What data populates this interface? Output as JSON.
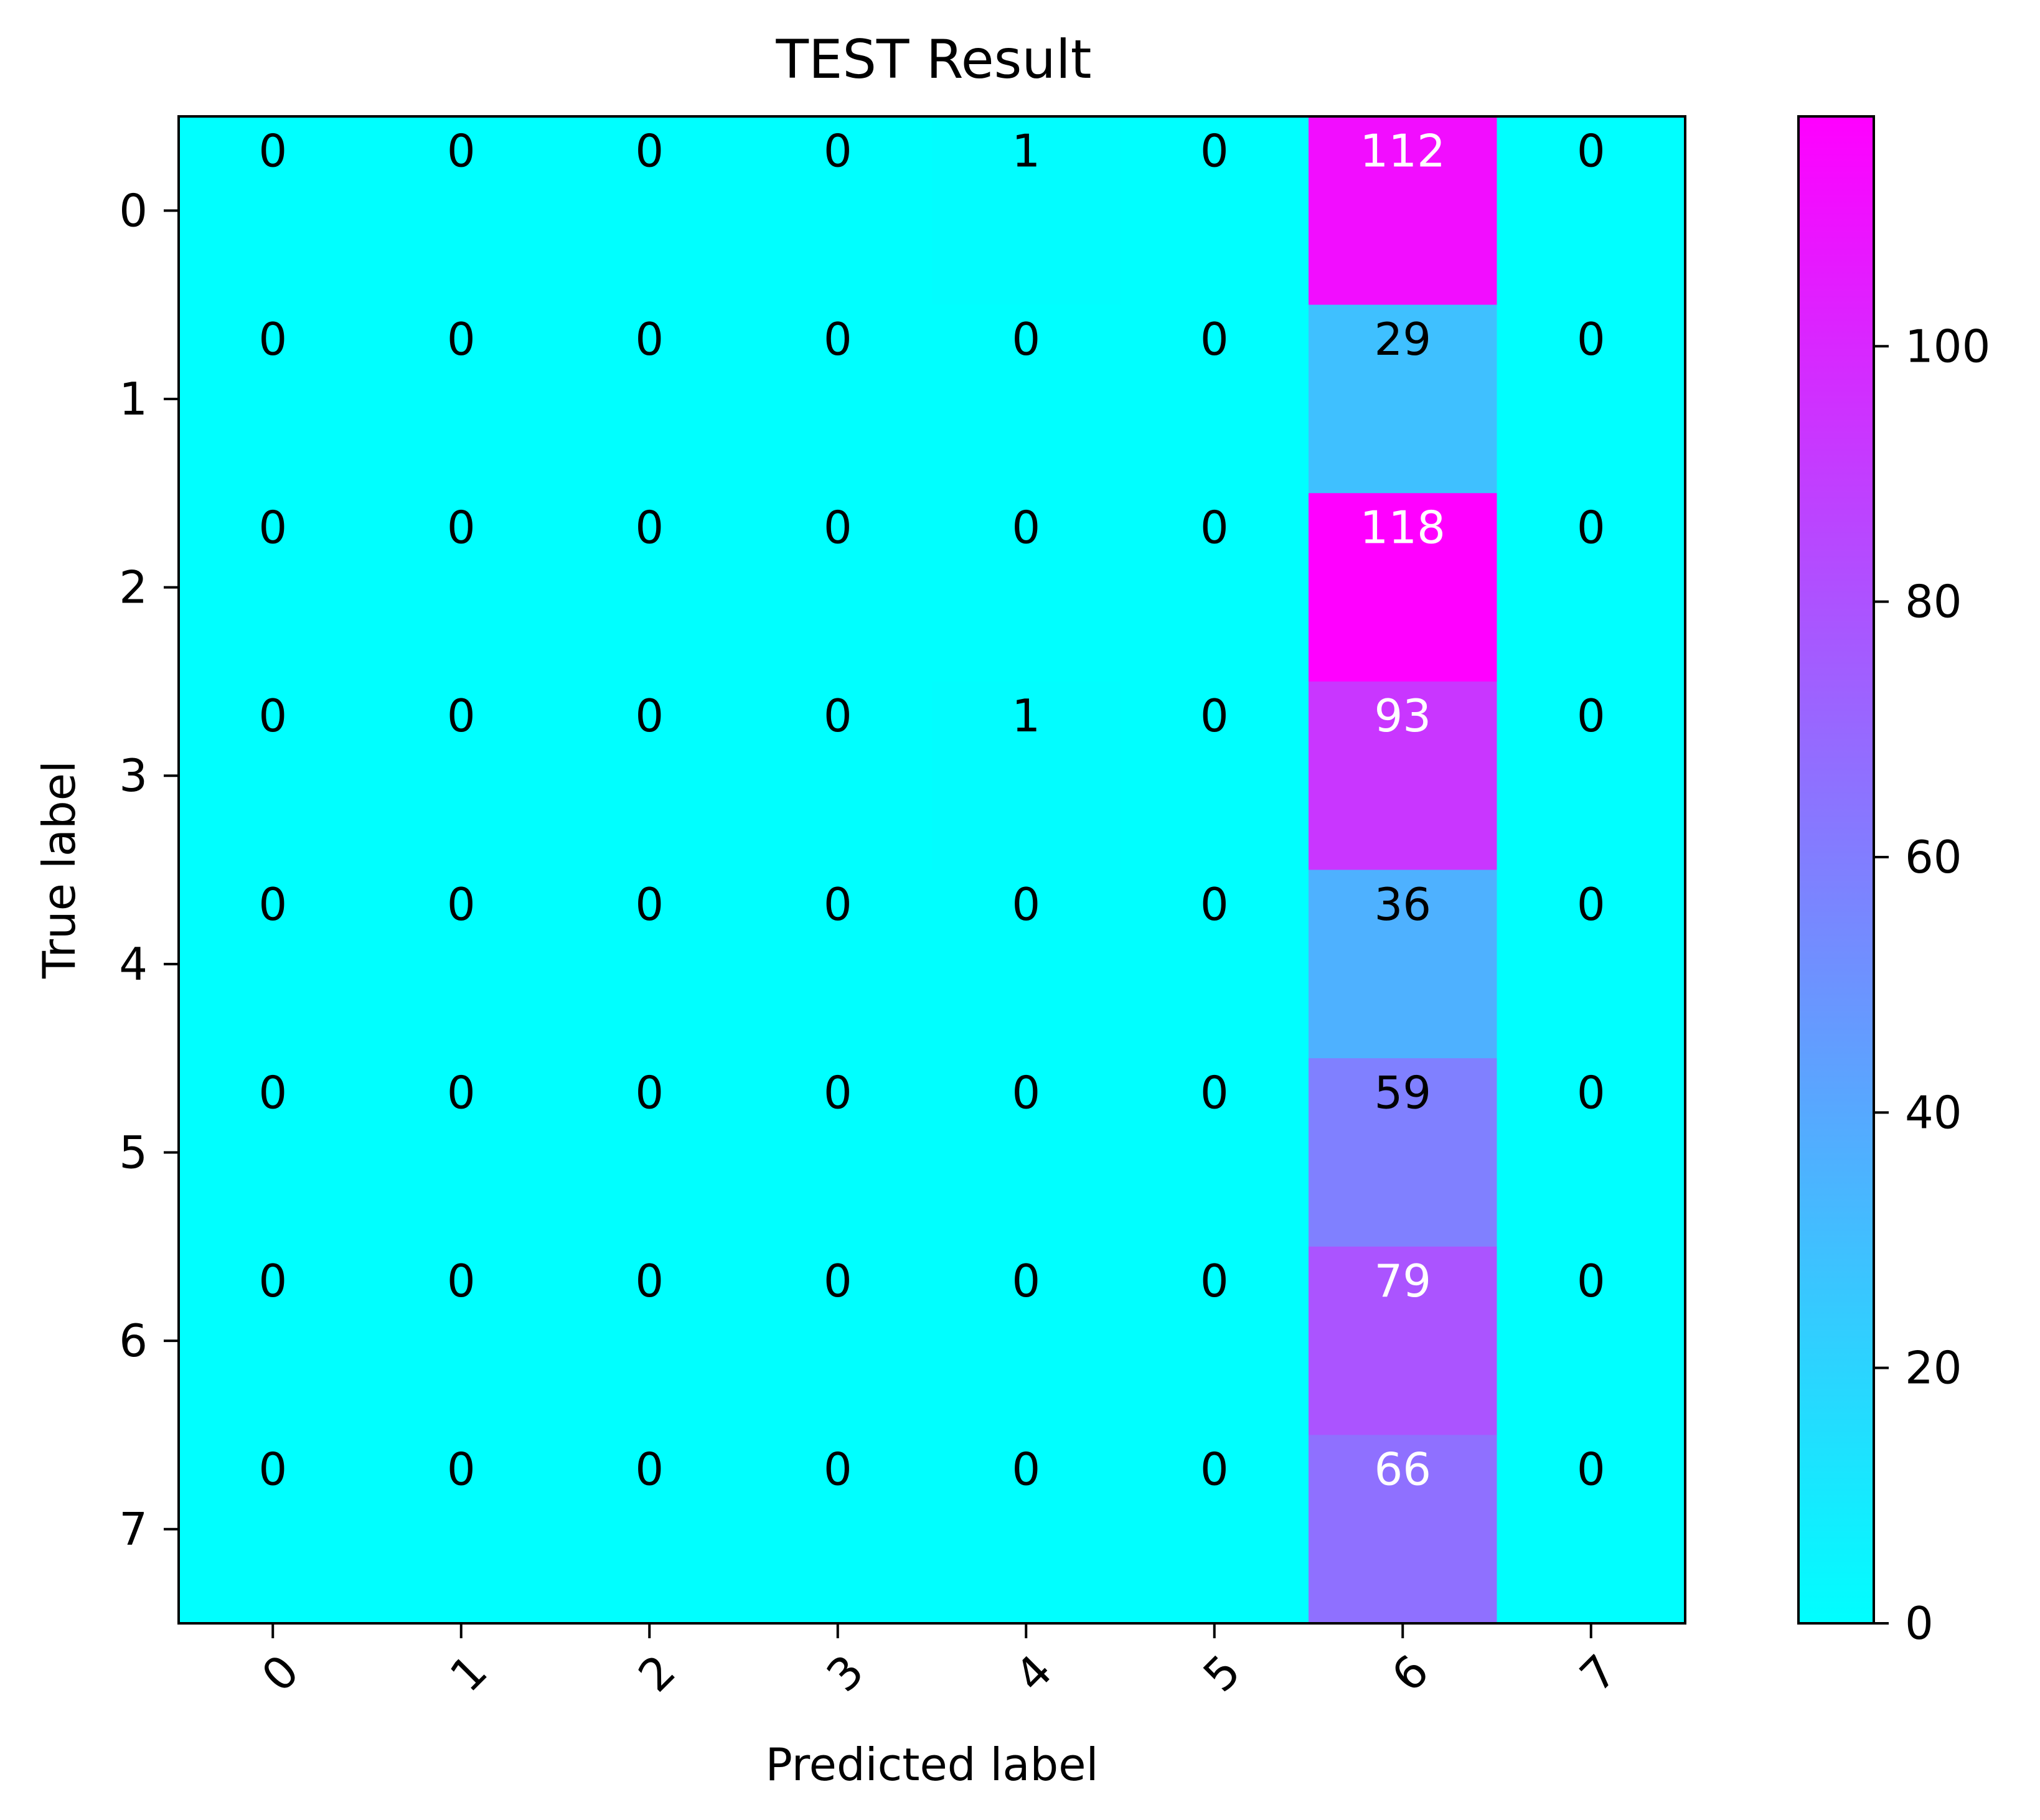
{
  "chart_data": {
    "type": "heatmap",
    "title": "TEST Result",
    "xlabel": "Predicted label",
    "ylabel": "True label",
    "x_tick_labels": [
      "0",
      "1",
      "2",
      "3",
      "4",
      "5",
      "6",
      "7"
    ],
    "y_tick_labels": [
      "0",
      "1",
      "2",
      "3",
      "4",
      "5",
      "6",
      "7"
    ],
    "x_tick_rotation_deg": 45,
    "matrix": [
      [
        0,
        0,
        0,
        0,
        1,
        0,
        112,
        0
      ],
      [
        0,
        0,
        0,
        0,
        0,
        0,
        29,
        0
      ],
      [
        0,
        0,
        0,
        0,
        0,
        0,
        118,
        0
      ],
      [
        0,
        0,
        0,
        0,
        1,
        0,
        93,
        0
      ],
      [
        0,
        0,
        0,
        0,
        0,
        0,
        36,
        0
      ],
      [
        0,
        0,
        0,
        0,
        0,
        0,
        59,
        0
      ],
      [
        0,
        0,
        0,
        0,
        0,
        0,
        79,
        0
      ],
      [
        0,
        0,
        0,
        0,
        0,
        0,
        66,
        0
      ]
    ],
    "colormap": "cool",
    "colormap_stops": [
      "#00ffff",
      "#ff00ff"
    ],
    "value_range": [
      0,
      118
    ],
    "colorbar": {
      "ticks": [
        0,
        20,
        40,
        60,
        80,
        100
      ],
      "tick_labels": [
        "0",
        "20",
        "40",
        "60",
        "80",
        "100"
      ],
      "position": "right"
    },
    "cell_text_colors": {
      "dark": "#000000",
      "light": "#ffffff"
    },
    "grid": false
  }
}
